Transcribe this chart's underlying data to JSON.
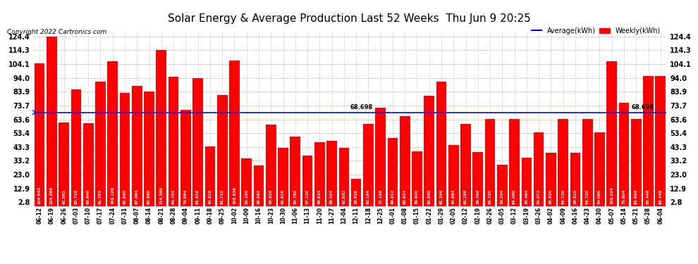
{
  "title": "Solar Energy & Average Production Last 52 Weeks  Thu Jun 9 20:25",
  "copyright": "Copyright 2022 Cartronics.com",
  "legend_average": "Average(kWh)",
  "legend_weekly": "Weekly(kWh)",
  "average_line": 68.698,
  "average_label": "68.698",
  "bar_color": "#ff0000",
  "average_line_color": "#0000ff",
  "background_color": "#ffffff",
  "grid_color": "#bbbbbb",
  "yticks": [
    2.8,
    12.9,
    23.0,
    33.2,
    43.3,
    53.4,
    63.6,
    73.7,
    83.9,
    94.0,
    104.1,
    114.3,
    124.4
  ],
  "xlabels": [
    "06-12",
    "06-19",
    "06-26",
    "07-03",
    "07-10",
    "07-17",
    "07-24",
    "07-31",
    "08-07",
    "08-14",
    "08-21",
    "08-28",
    "09-04",
    "09-11",
    "09-18",
    "09-25",
    "10-02",
    "10-09",
    "10-16",
    "10-23",
    "10-30",
    "11-06",
    "11-13",
    "11-20",
    "11-27",
    "12-04",
    "12-11",
    "12-18",
    "12-25",
    "01-01",
    "01-08",
    "01-15",
    "01-22",
    "01-29",
    "02-05",
    "02-12",
    "02-19",
    "02-26",
    "03-05",
    "03-12",
    "03-19",
    "03-26",
    "04-02",
    "04-09",
    "04-16",
    "04-23",
    "04-30",
    "05-07",
    "05-14",
    "05-21",
    "05-28",
    "06-04"
  ],
  "values": [
    104.844,
    124.396,
    61.061,
    85.736,
    60.64,
    91.395,
    106.128,
    82.88,
    87.964,
    83.88,
    114.38,
    94.704,
    70.664,
    93.816,
    43.816,
    81.712,
    106.836,
    35.1,
    29.892,
    59.816,
    42.816,
    50.76,
    37.12,
    46.824,
    48.024,
    42.852,
    19.828,
    60.184,
    72.188,
    49.912,
    65.924,
    39.92,
    80.9,
    91.396,
    44.664,
    60.288,
    39.396,
    63.72,
    30.354,
    64.08,
    35.464,
    54.072,
    38.82,
    63.72,
    38.82,
    63.72,
    54.08,
    106.024,
    75.904,
    63.698,
    95.448,
    95.448
  ],
  "value_labels": [
    "104.844",
    "124.396",
    "61.061",
    "85.736",
    "60.640",
    "91.395",
    "106.128",
    "82.880",
    "87.964",
    "83.880",
    "114.380",
    "94.704",
    "70.664",
    "93.816",
    "43.816",
    "81.712",
    "106.836",
    "35.100",
    "29.892",
    "59.816",
    "42.816",
    "50.760",
    "37.120",
    "46.824",
    "48.024",
    "42.852",
    "19.828",
    "60.184",
    "72.188",
    "49.912",
    "65.924",
    "39.920",
    "80.900",
    "91.396",
    "44.664",
    "60.288",
    "39.396",
    "63.720",
    "30.354",
    "64.080",
    "35.464",
    "54.072",
    "38.820",
    "63.720",
    "38.820",
    "63.720",
    "54.080",
    "106.024",
    "75.904",
    "63.698",
    "95.448",
    "95.448"
  ],
  "ylim_min": 0,
  "ylim_max": 128
}
